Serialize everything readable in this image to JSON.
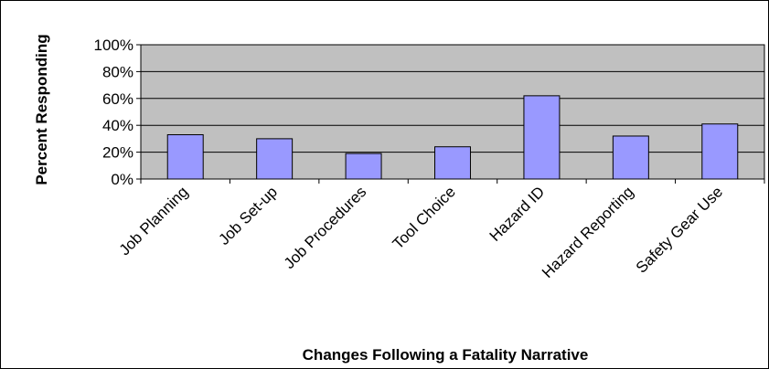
{
  "chart_data": {
    "type": "bar",
    "title": "",
    "xlabel": "Changes Following a Fatality Narrative",
    "ylabel": "Percent Responding",
    "categories": [
      "Job Planning",
      "Job Set-up",
      "Job Procedures",
      "Tool Choice",
      "Hazard ID",
      "Hazard Reporting",
      "Safety Gear Use"
    ],
    "values": [
      33,
      30,
      19,
      24,
      62,
      32,
      41
    ],
    "unit": "%",
    "ylim": [
      0,
      100
    ],
    "yticks": [
      "0%",
      "20%",
      "40%",
      "60%",
      "80%",
      "100%"
    ],
    "grid": true,
    "legend": "none",
    "colors": {
      "plot_background": "#c0c0c0",
      "bar_fill": "#9999ff",
      "bar_stroke": "#000000",
      "gridline": "#000000"
    }
  }
}
